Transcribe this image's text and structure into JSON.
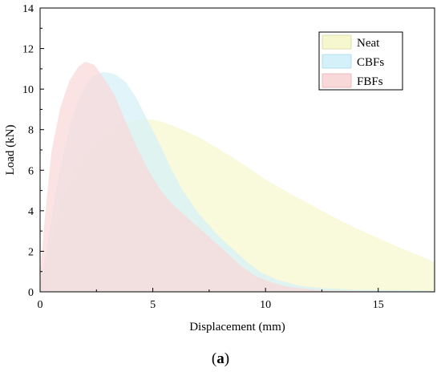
{
  "caption": {
    "prefix": "(",
    "letter": "a",
    "suffix": ")"
  },
  "chart_data": {
    "type": "area",
    "xlabel": "Displacement (mm)",
    "ylabel": "Load (kN)",
    "xlim": [
      0,
      17.5
    ],
    "ylim": [
      0,
      14
    ],
    "xticks": [
      0,
      5,
      10,
      15
    ],
    "yticks": [
      0,
      2,
      4,
      6,
      8,
      10,
      12,
      14
    ],
    "grid": false,
    "legend_position": "top-right",
    "series": [
      {
        "name": "Neat",
        "fill": "#f7f7cf",
        "swatch_border": "#d8d8a0",
        "points": [
          [
            0,
            0.3
          ],
          [
            0.5,
            2.5
          ],
          [
            1.0,
            4.6
          ],
          [
            1.5,
            6.0
          ],
          [
            2.0,
            6.8
          ],
          [
            2.5,
            7.4
          ],
          [
            3.0,
            7.9
          ],
          [
            3.5,
            8.2
          ],
          [
            4.0,
            8.4
          ],
          [
            4.5,
            8.5
          ],
          [
            5.0,
            8.5
          ],
          [
            5.5,
            8.35
          ],
          [
            6.0,
            8.15
          ],
          [
            7.0,
            7.65
          ],
          [
            8.0,
            7.0
          ],
          [
            9.0,
            6.3
          ],
          [
            10.0,
            5.55
          ],
          [
            11.0,
            4.9
          ],
          [
            12.0,
            4.3
          ],
          [
            13.0,
            3.7
          ],
          [
            14.0,
            3.15
          ],
          [
            15.0,
            2.65
          ],
          [
            16.0,
            2.15
          ],
          [
            17.0,
            1.7
          ],
          [
            17.5,
            1.45
          ]
        ]
      },
      {
        "name": "CBFs",
        "fill": "#d4f0f8",
        "swatch_border": "#a8d8e8",
        "points": [
          [
            0,
            0.4
          ],
          [
            0.3,
            2.2
          ],
          [
            0.8,
            5.6
          ],
          [
            1.3,
            8.1
          ],
          [
            1.8,
            9.8
          ],
          [
            2.3,
            10.6
          ],
          [
            2.8,
            10.85
          ],
          [
            3.3,
            10.75
          ],
          [
            3.8,
            10.35
          ],
          [
            4.3,
            9.5
          ],
          [
            4.8,
            8.4
          ],
          [
            5.3,
            7.3
          ],
          [
            5.8,
            6.1
          ],
          [
            6.3,
            5.05
          ],
          [
            7.0,
            3.9
          ],
          [
            7.8,
            2.9
          ],
          [
            8.5,
            2.15
          ],
          [
            9.2,
            1.45
          ],
          [
            9.8,
            0.95
          ],
          [
            10.5,
            0.6
          ],
          [
            11.5,
            0.3
          ],
          [
            12.5,
            0.18
          ],
          [
            14.0,
            0.1
          ],
          [
            15.5,
            0.08
          ],
          [
            17.5,
            0.05
          ]
        ]
      },
      {
        "name": "FBFs",
        "fill": "#f9d8da",
        "swatch_border": "#e8b0b4",
        "points": [
          [
            0,
            0.8
          ],
          [
            0.2,
            3.5
          ],
          [
            0.5,
            6.9
          ],
          [
            0.9,
            9.1
          ],
          [
            1.3,
            10.4
          ],
          [
            1.7,
            11.1
          ],
          [
            2.0,
            11.35
          ],
          [
            2.4,
            11.2
          ],
          [
            2.8,
            10.6
          ],
          [
            3.3,
            9.7
          ],
          [
            3.8,
            8.4
          ],
          [
            4.3,
            7.1
          ],
          [
            4.8,
            6.0
          ],
          [
            5.3,
            5.1
          ],
          [
            5.8,
            4.4
          ],
          [
            6.5,
            3.7
          ],
          [
            7.2,
            3.0
          ],
          [
            7.8,
            2.4
          ],
          [
            8.4,
            1.8
          ],
          [
            9.0,
            1.2
          ],
          [
            9.6,
            0.75
          ],
          [
            10.3,
            0.45
          ],
          [
            11.0,
            0.25
          ],
          [
            12.0,
            0.12
          ],
          [
            13.0,
            0.05
          ],
          [
            17.5,
            0.0
          ]
        ]
      }
    ]
  }
}
